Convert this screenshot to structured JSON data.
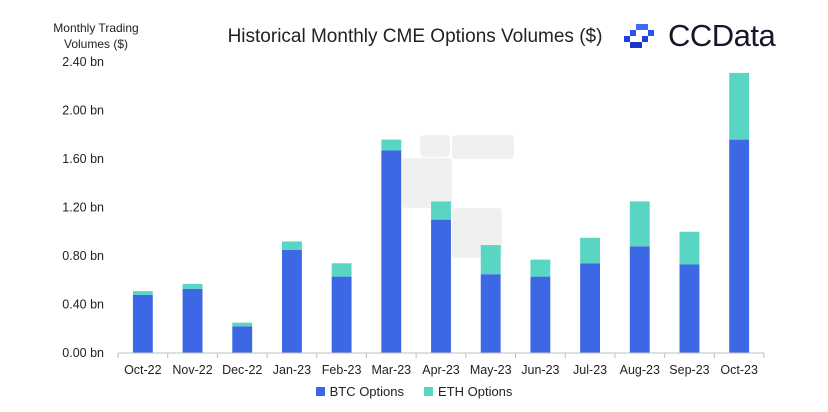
{
  "brand": {
    "name": "CCData",
    "logo_icon": "ccdata-logo-icon"
  },
  "colors": {
    "btc": "#3c68e6",
    "eth": "#59d6c3",
    "axis": "#bfbfbf",
    "watermark": "#f0f0f0"
  },
  "chart_data": {
    "type": "bar",
    "stacked": true,
    "title": "Historical Monthly CME Options Volumes ($)",
    "ylabel": "Monthly Trading Volumes ($)",
    "xlabel": "",
    "ylim": [
      0,
      2.4
    ],
    "yticks": [
      0,
      0.4,
      0.8,
      1.2,
      1.6,
      2.0,
      2.4
    ],
    "ytick_labels": [
      "0.00 bn",
      "0.40 bn",
      "0.80 bn",
      "1.20 bn",
      "1.60 bn",
      "2.00 bn",
      "2.40 bn"
    ],
    "grid": false,
    "legend_position": "bottom-center",
    "categories": [
      "Oct-22",
      "Nov-22",
      "Dec-22",
      "Jan-23",
      "Feb-23",
      "Mar-23",
      "Apr-23",
      "May-23",
      "Jun-23",
      "Jul-23",
      "Aug-23",
      "Sep-23",
      "Oct-23"
    ],
    "series": [
      {
        "name": "BTC Options",
        "color": "#3c68e6",
        "values": [
          0.48,
          0.53,
          0.22,
          0.85,
          0.63,
          1.67,
          1.1,
          0.65,
          0.63,
          0.74,
          0.88,
          0.73,
          1.76
        ]
      },
      {
        "name": "ETH Options",
        "color": "#59d6c3",
        "values": [
          0.03,
          0.04,
          0.03,
          0.07,
          0.11,
          0.09,
          0.15,
          0.24,
          0.14,
          0.21,
          0.37,
          0.27,
          0.55
        ]
      }
    ]
  }
}
